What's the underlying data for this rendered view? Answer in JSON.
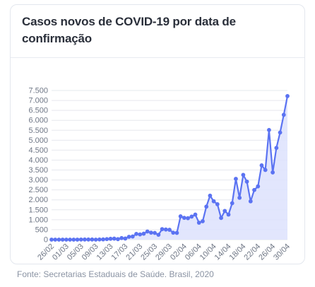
{
  "card": {
    "title": "Casos novos de COVID-19 por data de confirmação"
  },
  "source": "Fonte: Secretarias Estaduais de Saúde. Brasil, 2020",
  "colors": {
    "line": "#5b73f2",
    "fill": "#dde2fd",
    "grid": "#e6e8ee",
    "tick": "#6e7685"
  },
  "chart_data": {
    "type": "area",
    "title": "Casos novos de COVID-19 por data de confirmação",
    "xlabel": "",
    "ylabel": "",
    "ylim": [
      0,
      7500
    ],
    "yticks": [
      0,
      500,
      1000,
      1500,
      2000,
      2500,
      3000,
      3500,
      4000,
      4500,
      5000,
      5500,
      6000,
      6500,
      7000,
      7500
    ],
    "ytick_labels": [
      "0",
      "500",
      "1.000",
      "1.500",
      "2.000",
      "2.500",
      "3.000",
      "3.500",
      "4.000",
      "4.500",
      "5.000",
      "5.500",
      "6.000",
      "6.500",
      "7.000",
      "7.500"
    ],
    "x": [
      "26/02",
      "27/02",
      "28/02",
      "29/02",
      "01/03",
      "02/03",
      "03/03",
      "04/03",
      "05/03",
      "06/03",
      "07/03",
      "08/03",
      "09/03",
      "10/03",
      "11/03",
      "12/03",
      "13/03",
      "14/03",
      "15/03",
      "16/03",
      "17/03",
      "18/03",
      "19/03",
      "20/03",
      "21/03",
      "22/03",
      "23/03",
      "24/03",
      "25/03",
      "26/03",
      "27/03",
      "28/03",
      "29/03",
      "30/03",
      "31/03",
      "01/04",
      "02/04",
      "03/04",
      "04/04",
      "05/04",
      "06/04",
      "07/04",
      "08/04",
      "09/04",
      "10/04",
      "11/04",
      "12/04",
      "13/04",
      "14/04",
      "15/04",
      "16/04",
      "17/04",
      "18/04",
      "19/04",
      "20/04",
      "21/04",
      "22/04",
      "23/04",
      "24/04",
      "25/04",
      "26/04",
      "27/04",
      "28/04",
      "29/04",
      "30/04"
    ],
    "xtick_labels": [
      "26/02",
      "01/03",
      "05/03",
      "09/03",
      "13/03",
      "17/03",
      "21/03",
      "25/03",
      "29/03",
      "02/04",
      "06/04",
      "10/04",
      "14/04",
      "18/04",
      "22/04",
      "26/04",
      "30/04"
    ],
    "legend": "none",
    "grid": true,
    "series": [
      {
        "values": [
          1,
          0,
          0,
          1,
          0,
          0,
          0,
          1,
          5,
          6,
          6,
          6,
          0,
          9,
          12,
          27,
          44,
          51,
          25,
          79,
          56,
          142,
          158,
          289,
          262,
          300,
          410,
          352,
          338,
          245,
          527,
          509,
          496,
          350,
          340,
          1171,
          1097,
          1079,
          1159,
          1261,
          852,
          926,
          1661,
          2210,
          1930,
          1781,
          1089,
          1442,
          1261,
          1832,
          3058,
          2105,
          3257,
          2917,
          1927,
          2498,
          2678,
          3735,
          3503,
          5514,
          3379,
          4613,
          5385,
          6276,
          7218
        ]
      }
    ]
  }
}
